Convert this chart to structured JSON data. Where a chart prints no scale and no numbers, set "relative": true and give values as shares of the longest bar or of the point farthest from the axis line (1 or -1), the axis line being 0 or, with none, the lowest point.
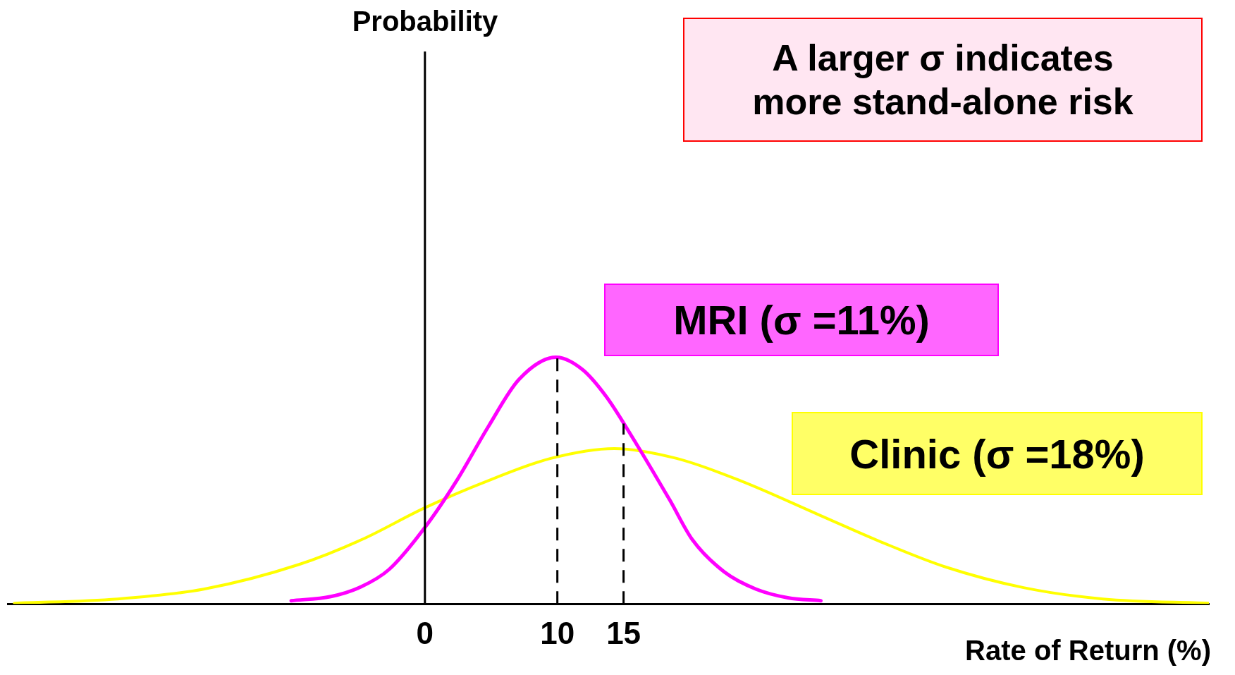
{
  "chart_data": {
    "type": "line",
    "relative": true,
    "xlabel": "Rate of Return (%)",
    "xlim": [
      -31.5,
      59.2
    ],
    "xticks": [
      0,
      10,
      15
    ],
    "grid": false,
    "legend": false,
    "marker": "none",
    "line_style": "solid",
    "annotations": [
      "A larger σ indicates more stand-alone risk",
      "Probability"
    ],
    "ref_lines": [
      {
        "axis": "x",
        "value": 10,
        "color": "#000000",
        "line_style": "dashed"
      },
      {
        "axis": "x",
        "value": 15,
        "color": "#000000",
        "line_style": "dashed"
      }
    ],
    "series": [
      {
        "name": "MRI (σ =11%)",
        "color": "#ff00ff",
        "x": [
          -10.1,
          -7.1,
          -4.8,
          -2.7,
          0,
          2.4,
          4.8,
          7.1,
          9.9,
          11.9,
          13.7,
          15.5,
          18.5,
          20.2,
          22.6,
          25,
          27.4,
          29.9
        ],
        "values": [
          0.013,
          0.03,
          0.07,
          0.14,
          0.31,
          0.5,
          0.72,
          0.91,
          1,
          0.95,
          0.84,
          0.69,
          0.42,
          0.26,
          0.13,
          0.06,
          0.025,
          0.013
        ]
      },
      {
        "name": "Clinic (σ =18%)",
        "color": "#ffff00",
        "x": [
          -31,
          -23.2,
          -16.7,
          -9.5,
          -4.8,
          0,
          4.8,
          9.5,
          14.3,
          19,
          23.8,
          29.8,
          34.5,
          39.3,
          45.2,
          51.2,
          59.2
        ],
        "values": [
          0.003,
          0.02,
          0.06,
          0.16,
          0.26,
          0.39,
          0.5,
          0.59,
          0.63,
          0.59,
          0.5,
          0.36,
          0.25,
          0.15,
          0.066,
          0.02,
          0.003
        ]
      }
    ]
  }
}
